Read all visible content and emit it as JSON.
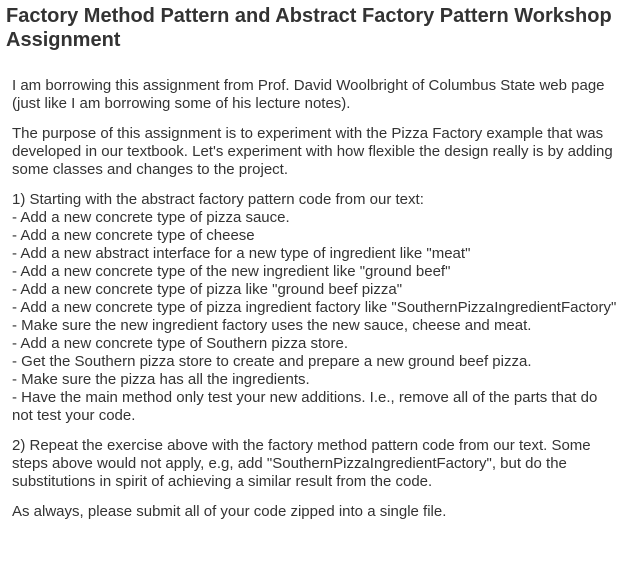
{
  "page": {
    "title": "Factory Method Pattern and Abstract Factory Pattern Workshop Assignment"
  },
  "content": {
    "intro": "I am borrowing this assignment from Prof. David Woolbright of Columbus State web page (just like I am borrowing some of his lecture notes).",
    "purpose": "The purpose of this assignment is to experiment with the Pizza Factory example that was developed in our textbook. Let's experiment with how flexible the design really is by adding some classes and changes to the project.",
    "part1_intro": "1) Starting with the abstract factory pattern code from our text:",
    "part1_steps": [
      "- Add a new concrete type of pizza sauce.",
      "- Add a new concrete type of cheese",
      "- Add a new abstract interface for a new type of ingredient like \"meat\"",
      "- Add a new concrete type of the new ingredient like \"ground beef\"",
      "- Add a new concrete type of pizza like \"ground beef pizza\"",
      "- Add a new concrete type of pizza ingredient factory like \"SouthernPizzaIngredientFactory\"",
      "- Make sure the new ingredient factory uses the new sauce, cheese and meat.",
      "- Add a new concrete type of Southern pizza store.",
      "- Get the Southern pizza store to create and prepare a new ground beef pizza.",
      "- Make sure the pizza has all the ingredients.",
      "- Have the main method only test your new additions. I.e., remove all of the parts that do not test your code."
    ],
    "part2": "2) Repeat the exercise above with the factory method pattern code from our text. Some steps above would not apply, e.g, add \"SouthernPizzaIngredientFactory\", but do the substitutions in spirit of achieving a similar result from the code.",
    "closing": "As always, please submit all of your code zipped into a single file."
  }
}
